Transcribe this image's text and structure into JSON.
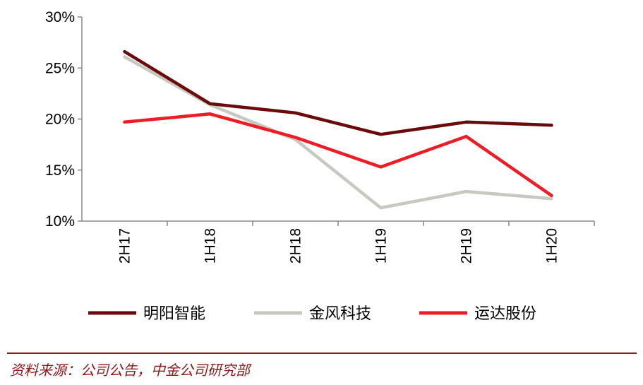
{
  "chart_data": {
    "type": "line",
    "categories": [
      "2H17",
      "1H18",
      "2H18",
      "1H19",
      "2H19",
      "1H20"
    ],
    "y_ticks": [
      "10%",
      "15%",
      "20%",
      "25%",
      "30%"
    ],
    "ylim": [
      10,
      30
    ],
    "grid": false,
    "legend_position": "bottom",
    "series": [
      {
        "name": "明阳智能",
        "color": "#6b0a0a",
        "values": [
          26.6,
          21.5,
          20.6,
          18.5,
          19.7,
          19.4
        ]
      },
      {
        "name": "金风科技",
        "color": "#c8c8c0",
        "values": [
          26.1,
          21.4,
          18.0,
          11.3,
          12.9,
          12.2
        ]
      },
      {
        "name": "运达股份",
        "color": "#ee1c25",
        "values": [
          19.7,
          20.5,
          18.2,
          15.3,
          18.3,
          12.5
        ]
      }
    ]
  },
  "source_text": "资料来源：公司公告，中金公司研究部"
}
